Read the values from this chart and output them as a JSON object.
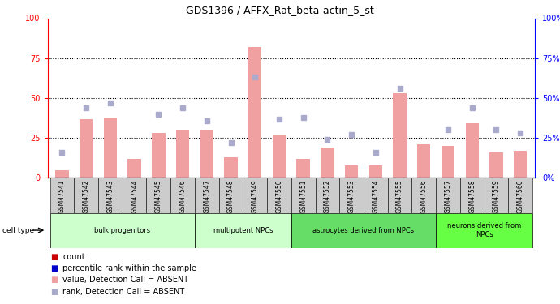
{
  "title": "GDS1396 / AFFX_Rat_beta-actin_5_st",
  "samples": [
    "GSM47541",
    "GSM47542",
    "GSM47543",
    "GSM47544",
    "GSM47545",
    "GSM47546",
    "GSM47547",
    "GSM47548",
    "GSM47549",
    "GSM47550",
    "GSM47551",
    "GSM47552",
    "GSM47553",
    "GSM47554",
    "GSM47555",
    "GSM47556",
    "GSM47557",
    "GSM47558",
    "GSM47559",
    "GSM47560"
  ],
  "bar_values": [
    5,
    37,
    38,
    12,
    28,
    30,
    30,
    13,
    82,
    27,
    12,
    19,
    8,
    8,
    53,
    21,
    20,
    34,
    16,
    17
  ],
  "dot_values": [
    16,
    44,
    47,
    null,
    40,
    44,
    36,
    22,
    63,
    37,
    38,
    24,
    27,
    16,
    56,
    null,
    30,
    44,
    30,
    28
  ],
  "groups": [
    {
      "label": "bulk progenitors",
      "start": 0,
      "end": 5,
      "color": "#ccffcc"
    },
    {
      "label": "multipotent NPCs",
      "start": 6,
      "end": 9,
      "color": "#ccffcc"
    },
    {
      "label": "astrocytes derived from NPCs",
      "start": 10,
      "end": 15,
      "color": "#66dd66"
    },
    {
      "label": "neurons derived from\nNPCs",
      "start": 16,
      "end": 19,
      "color": "#66ff44"
    }
  ],
  "bar_color_absent": "#f0a0a0",
  "dot_color_absent": "#aaaacc",
  "legend_items": [
    {
      "color": "#cc0000",
      "label": "count"
    },
    {
      "color": "#0000cc",
      "label": "percentile rank within the sample"
    },
    {
      "color": "#f0a0a0",
      "label": "value, Detection Call = ABSENT"
    },
    {
      "color": "#aaaacc",
      "label": "rank, Detection Call = ABSENT"
    }
  ],
  "yticks": [
    0,
    25,
    50,
    75,
    100
  ],
  "ylim": [
    0,
    100
  ]
}
